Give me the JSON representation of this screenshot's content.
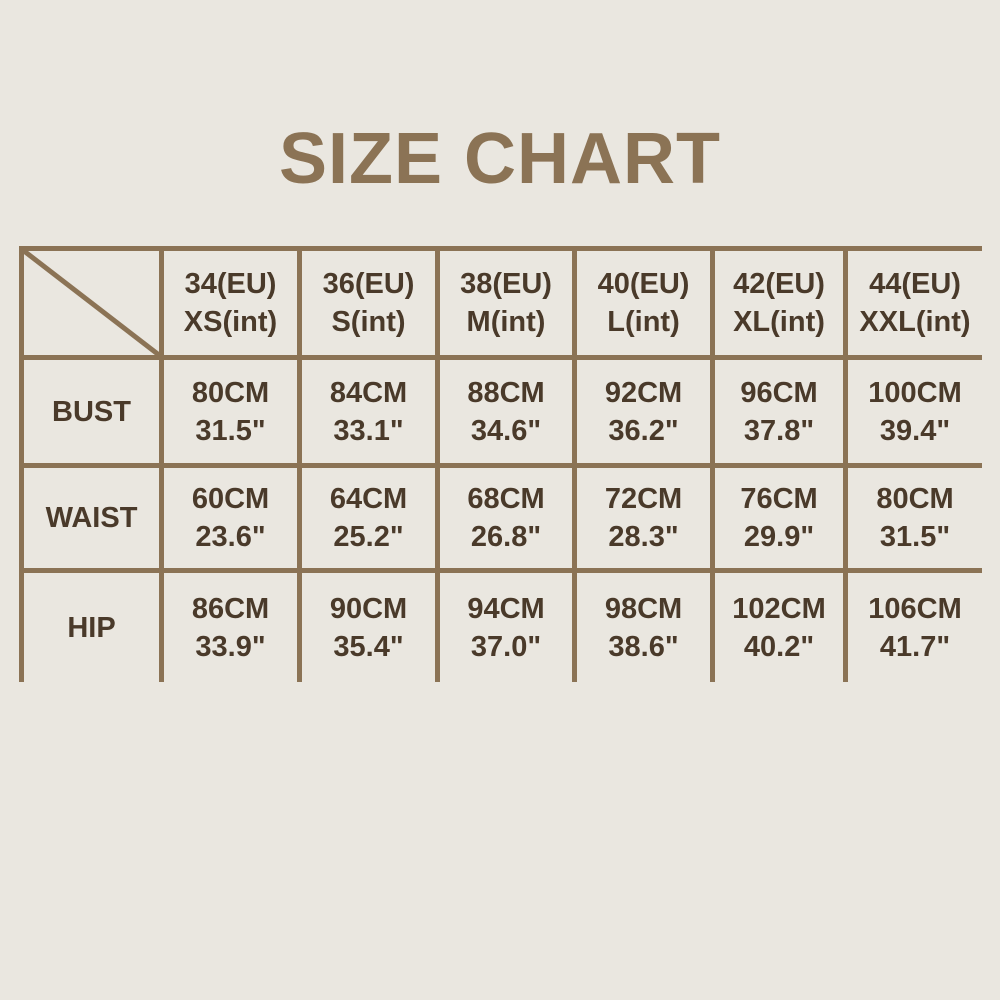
{
  "title": "SIZE CHART",
  "colors": {
    "border": "#8b7355",
    "title": "#8b7355",
    "text": "#4a3a2a",
    "background": "#eae7e0"
  },
  "chart_data": {
    "type": "table",
    "title": "SIZE CHART",
    "columns": [
      {
        "eu": "34(EU)",
        "int": "XS(int)"
      },
      {
        "eu": "36(EU)",
        "int": "S(int)"
      },
      {
        "eu": "38(EU)",
        "int": "M(int)"
      },
      {
        "eu": "40(EU)",
        "int": "L(int)"
      },
      {
        "eu": "42(EU)",
        "int": "XL(int)"
      },
      {
        "eu": "44(EU)",
        "int": "XXL(int)"
      }
    ],
    "rows": [
      {
        "label": "BUST",
        "cells": [
          {
            "cm": "80CM",
            "in": "31.5\""
          },
          {
            "cm": "84CM",
            "in": "33.1\""
          },
          {
            "cm": "88CM",
            "in": "34.6\""
          },
          {
            "cm": "92CM",
            "in": "36.2\""
          },
          {
            "cm": "96CM",
            "in": "37.8\""
          },
          {
            "cm": "100CM",
            "in": "39.4\""
          }
        ]
      },
      {
        "label": "WAIST",
        "cells": [
          {
            "cm": "60CM",
            "in": "23.6\""
          },
          {
            "cm": "64CM",
            "in": "25.2\""
          },
          {
            "cm": "68CM",
            "in": "26.8\""
          },
          {
            "cm": "72CM",
            "in": "28.3\""
          },
          {
            "cm": "76CM",
            "in": "29.9\""
          },
          {
            "cm": "80CM",
            "in": "31.5\""
          }
        ]
      },
      {
        "label": "HIP",
        "cells": [
          {
            "cm": "86CM",
            "in": "33.9\""
          },
          {
            "cm": "90CM",
            "in": "35.4\""
          },
          {
            "cm": "94CM",
            "in": "37.0\""
          },
          {
            "cm": "98CM",
            "in": "38.6\""
          },
          {
            "cm": "102CM",
            "in": "40.2\""
          },
          {
            "cm": "106CM",
            "in": "41.7\""
          }
        ]
      }
    ]
  }
}
